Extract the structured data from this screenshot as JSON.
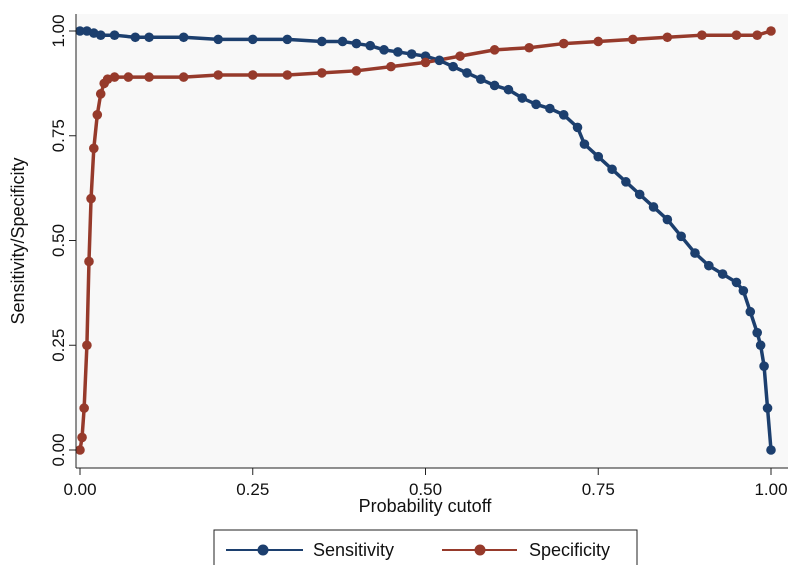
{
  "chart_data": {
    "type": "line",
    "title": "",
    "xlabel": "Probability cutoff",
    "ylabel": "Sensitivity/Specificity",
    "xlim": [
      0,
      1
    ],
    "ylim": [
      0,
      1
    ],
    "xticks": [
      "0.00",
      "0.25",
      "0.50",
      "0.75",
      "1.00"
    ],
    "yticks": [
      "0.00",
      "0.25",
      "0.50",
      "0.75",
      "1.00"
    ],
    "grid": false,
    "legend_position": "bottom",
    "series": [
      {
        "name": "Sensitivity",
        "color": "#1c3f6e",
        "marker": "circle",
        "x": [
          0.0,
          0.01,
          0.02,
          0.03,
          0.05,
          0.08,
          0.1,
          0.15,
          0.2,
          0.25,
          0.3,
          0.35,
          0.38,
          0.4,
          0.42,
          0.44,
          0.46,
          0.48,
          0.5,
          0.52,
          0.54,
          0.56,
          0.58,
          0.6,
          0.62,
          0.64,
          0.66,
          0.68,
          0.7,
          0.72,
          0.73,
          0.75,
          0.77,
          0.79,
          0.81,
          0.83,
          0.85,
          0.87,
          0.89,
          0.91,
          0.93,
          0.95,
          0.96,
          0.97,
          0.98,
          0.985,
          0.99,
          0.995,
          1.0
        ],
        "y": [
          1.0,
          1.0,
          0.995,
          0.99,
          0.99,
          0.985,
          0.985,
          0.985,
          0.98,
          0.98,
          0.98,
          0.975,
          0.975,
          0.97,
          0.965,
          0.955,
          0.95,
          0.945,
          0.94,
          0.93,
          0.915,
          0.9,
          0.885,
          0.87,
          0.86,
          0.84,
          0.825,
          0.815,
          0.8,
          0.77,
          0.73,
          0.7,
          0.67,
          0.64,
          0.61,
          0.58,
          0.55,
          0.51,
          0.47,
          0.44,
          0.42,
          0.4,
          0.38,
          0.33,
          0.28,
          0.25,
          0.2,
          0.1,
          0.0
        ]
      },
      {
        "name": "Specificity",
        "color": "#963a2b",
        "marker": "circle",
        "x": [
          0.0,
          0.003,
          0.006,
          0.01,
          0.013,
          0.016,
          0.02,
          0.025,
          0.03,
          0.035,
          0.04,
          0.05,
          0.07,
          0.1,
          0.15,
          0.2,
          0.25,
          0.3,
          0.35,
          0.4,
          0.45,
          0.5,
          0.55,
          0.6,
          0.65,
          0.7,
          0.75,
          0.8,
          0.85,
          0.9,
          0.95,
          0.98,
          1.0
        ],
        "y": [
          0.0,
          0.03,
          0.1,
          0.25,
          0.45,
          0.6,
          0.72,
          0.8,
          0.85,
          0.875,
          0.885,
          0.89,
          0.89,
          0.89,
          0.89,
          0.895,
          0.895,
          0.895,
          0.9,
          0.905,
          0.915,
          0.925,
          0.94,
          0.955,
          0.96,
          0.97,
          0.975,
          0.98,
          0.985,
          0.99,
          0.99,
          0.99,
          1.0
        ]
      }
    ]
  }
}
